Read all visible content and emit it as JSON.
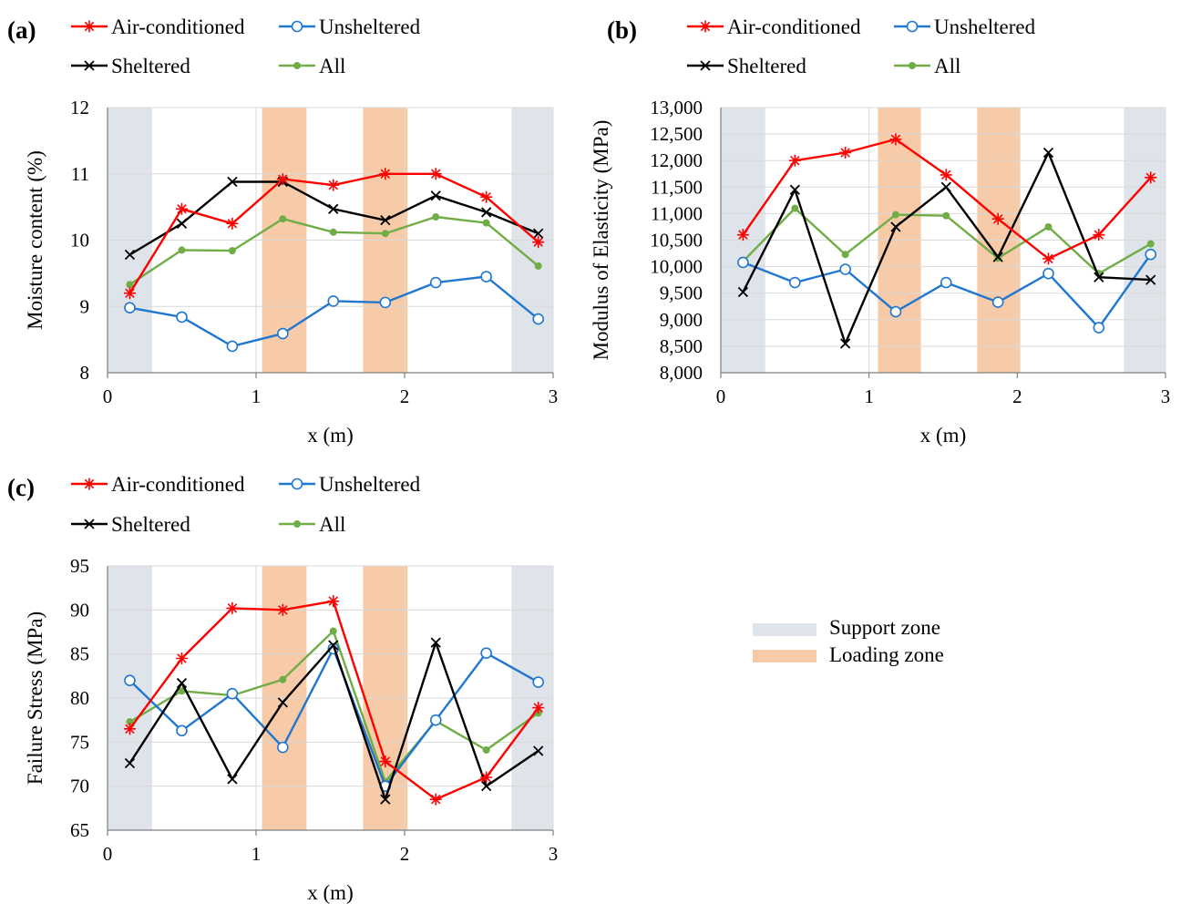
{
  "series_styles": {
    "Air-conditioned": {
      "color": "#ff0000",
      "marker": "asterisk"
    },
    "Unsheltered": {
      "color": "#1f77d0",
      "marker": "circle"
    },
    "Sheltered": {
      "color": "#000000",
      "marker": "x"
    },
    "All": {
      "color": "#70ad47",
      "marker": "dot"
    }
  },
  "zone_colors": {
    "support": "#dfe3ea",
    "loading": "#f8cba8"
  },
  "zone_legend": {
    "support": "Support zone",
    "loading": "Loading zone"
  },
  "chart_data": [
    {
      "panel": "(a)",
      "type": "line",
      "xlabel": "x (m)",
      "ylabel": "Moisture content (%)",
      "xlim": [
        0,
        3
      ],
      "ylim": [
        8,
        12
      ],
      "xticks": [
        0,
        1,
        2,
        3
      ],
      "yticks": [
        8,
        9,
        10,
        11,
        12
      ],
      "ytick_labels": [
        "8",
        "9",
        "10",
        "11",
        "12"
      ],
      "grid": true,
      "legend": "top",
      "support_zones": [
        [
          0,
          0.3
        ],
        [
          2.72,
          3.0
        ]
      ],
      "loading_zones": [
        [
          1.04,
          1.34
        ],
        [
          1.72,
          2.02
        ]
      ],
      "x": [
        0.15,
        0.5,
        0.84,
        1.18,
        1.52,
        1.87,
        2.21,
        2.55,
        2.9
      ],
      "series": [
        {
          "name": "Air-conditioned",
          "values": [
            9.2,
            10.47,
            10.25,
            10.92,
            10.83,
            11.0,
            11.0,
            10.65,
            9.97
          ]
        },
        {
          "name": "Unsheltered",
          "values": [
            8.98,
            8.84,
            8.4,
            8.59,
            9.08,
            9.06,
            9.36,
            9.45,
            8.81
          ]
        },
        {
          "name": "Sheltered",
          "values": [
            9.78,
            10.25,
            10.88,
            10.88,
            10.47,
            10.3,
            10.67,
            10.42,
            10.1
          ]
        },
        {
          "name": "All",
          "values": [
            9.33,
            9.85,
            9.84,
            10.32,
            10.12,
            10.1,
            10.35,
            10.26,
            9.61
          ]
        }
      ]
    },
    {
      "panel": "(b)",
      "type": "line",
      "xlabel": "x (m)",
      "ylabel": "Modulus of Elasticity (MPa)",
      "xlim": [
        0,
        3
      ],
      "ylim": [
        8000,
        13000
      ],
      "xticks": [
        0,
        1,
        2,
        3
      ],
      "yticks": [
        8000,
        8500,
        9000,
        9500,
        10000,
        10500,
        11000,
        11500,
        12000,
        12500,
        13000
      ],
      "ytick_labels": [
        "8,000",
        "8,500",
        "9,000",
        "9,500",
        "10,000",
        "10,500",
        "11,000",
        "11,500",
        "12,000",
        "12,500",
        "13,000"
      ],
      "grid": true,
      "legend": "top",
      "support_zones": [
        [
          0,
          0.3
        ],
        [
          2.72,
          3.0
        ]
      ],
      "loading_zones": [
        [
          1.06,
          1.35
        ],
        [
          1.73,
          2.02
        ]
      ],
      "x": [
        0.15,
        0.5,
        0.84,
        1.18,
        1.52,
        1.87,
        2.21,
        2.55,
        2.9
      ],
      "series": [
        {
          "name": "Air-conditioned",
          "values": [
            10600,
            12000,
            12150,
            12400,
            11730,
            10900,
            10150,
            10600,
            11680
          ]
        },
        {
          "name": "Unsheltered",
          "values": [
            10080,
            9700,
            9950,
            9150,
            9700,
            9330,
            9870,
            8850,
            10230
          ]
        },
        {
          "name": "Sheltered",
          "values": [
            9520,
            11450,
            8550,
            10750,
            11500,
            10180,
            12150,
            9800,
            9750
          ]
        },
        {
          "name": "All",
          "values": [
            10100,
            11100,
            10230,
            10980,
            10960,
            10160,
            10750,
            9870,
            10430
          ]
        }
      ]
    },
    {
      "panel": "(c)",
      "type": "line",
      "xlabel": "x (m)",
      "ylabel": "Failure Stress (MPa)",
      "xlim": [
        0,
        3
      ],
      "ylim": [
        65,
        95
      ],
      "xticks": [
        0,
        1,
        2,
        3
      ],
      "yticks": [
        65,
        70,
        75,
        80,
        85,
        90,
        95
      ],
      "ytick_labels": [
        "65",
        "70",
        "75",
        "80",
        "85",
        "90",
        "95"
      ],
      "grid": true,
      "legend": "top",
      "support_zones": [
        [
          0,
          0.3
        ],
        [
          2.72,
          3.0
        ]
      ],
      "loading_zones": [
        [
          1.04,
          1.34
        ],
        [
          1.72,
          2.02
        ]
      ],
      "x": [
        0.15,
        0.5,
        0.84,
        1.18,
        1.52,
        1.87,
        2.21,
        2.55,
        2.9
      ],
      "series": [
        {
          "name": "Air-conditioned",
          "values": [
            76.5,
            84.5,
            90.2,
            90.0,
            91.0,
            72.8,
            68.5,
            71.0,
            78.9
          ]
        },
        {
          "name": "Unsheltered",
          "values": [
            82.0,
            76.3,
            80.5,
            74.4,
            85.6,
            70.0,
            77.5,
            85.1,
            81.8
          ]
        },
        {
          "name": "Sheltered",
          "values": [
            72.6,
            81.7,
            70.8,
            79.5,
            86.0,
            68.5,
            86.3,
            70.0,
            74.0
          ]
        },
        {
          "name": "All",
          "values": [
            77.3,
            80.8,
            80.3,
            82.1,
            87.6,
            70.5,
            77.4,
            74.1,
            78.3
          ]
        }
      ]
    }
  ]
}
